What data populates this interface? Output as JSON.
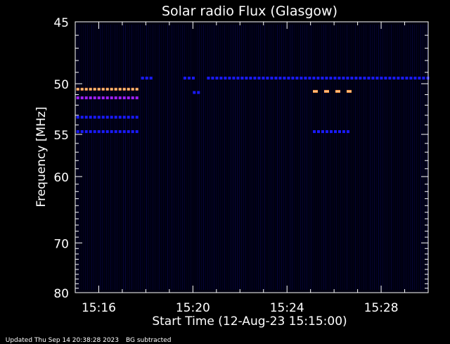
{
  "chart_data": {
    "type": "heatmap",
    "title": "Solar radio Flux (Glasgow)",
    "xlabel": "Start Time (12-Aug-23 15:15:00)",
    "ylabel": "Frequency [MHz]",
    "xlim_minutes": [
      15.0,
      30.0
    ],
    "ylim_mhz": [
      45,
      80
    ],
    "y_ticks": [
      45,
      50,
      55,
      60,
      70,
      80
    ],
    "x_ticks": [
      {
        "label": "15:16",
        "minute": 16
      },
      {
        "label": "15:20",
        "minute": 20
      },
      {
        "label": "15:24",
        "minute": 24
      },
      {
        "label": "15:28",
        "minute": 28
      }
    ],
    "background_color": "#000010",
    "colors": {
      "axis": "#ffffff",
      "weak": "#1a1aff",
      "medium": "#a020ff",
      "strong": "#ff9040"
    },
    "emission_lines": [
      {
        "freq_mhz": 50.5,
        "t_start": 15.05,
        "t_end": 17.7,
        "intensity": "strong"
      },
      {
        "freq_mhz": 51.3,
        "t_start": 15.05,
        "t_end": 17.7,
        "intensity": "medium"
      },
      {
        "freq_mhz": 53.2,
        "t_start": 15.05,
        "t_end": 17.7,
        "intensity": "weak"
      },
      {
        "freq_mhz": 54.7,
        "t_start": 15.05,
        "t_end": 17.7,
        "intensity": "weak"
      },
      {
        "freq_mhz": 49.5,
        "t_start": 17.8,
        "t_end": 18.2,
        "intensity": "weak"
      },
      {
        "freq_mhz": 49.5,
        "t_start": 19.6,
        "t_end": 20.1,
        "intensity": "weak"
      },
      {
        "freq_mhz": 50.8,
        "t_start": 20.0,
        "t_end": 20.2,
        "intensity": "weak"
      },
      {
        "freq_mhz": 49.5,
        "t_start": 20.6,
        "t_end": 30.0,
        "intensity": "weak"
      },
      {
        "freq_mhz": 50.7,
        "t_start": 25.1,
        "t_end": 26.6,
        "intensity": "strong"
      },
      {
        "freq_mhz": 54.7,
        "t_start": 25.1,
        "t_end": 26.6,
        "intensity": "weak"
      }
    ],
    "footer": {
      "updated": "Updated Thu Sep 14 20:38:28 2023",
      "note": "BG subtracted"
    }
  }
}
